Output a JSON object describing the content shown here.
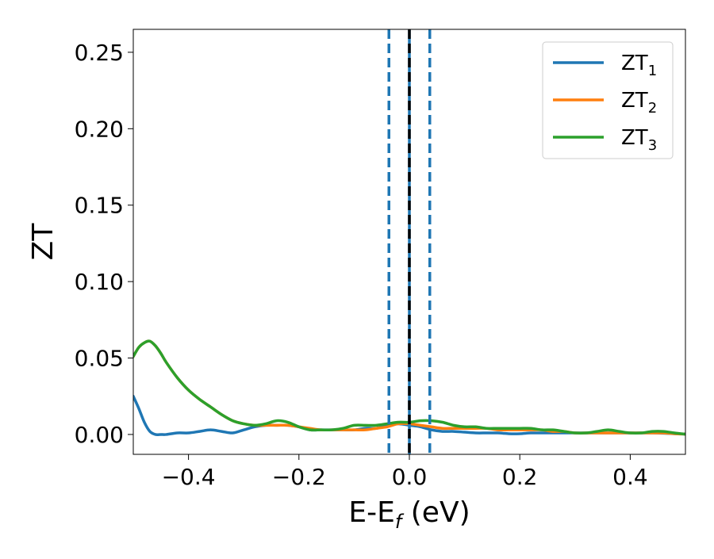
{
  "chart_data": {
    "type": "line",
    "title": "",
    "xlabel": "E-E",
    "xlabel_subscript": "f",
    "xlabel_suffix": " (eV)",
    "ylabel": "ZT",
    "xlim": [
      -0.5,
      0.5
    ],
    "ylim": [
      -0.013,
      0.265
    ],
    "x_ticks": [
      -0.4,
      -0.2,
      0.0,
      0.2,
      0.4
    ],
    "x_tick_labels": [
      "−0.4",
      "−0.2",
      "0.0",
      "0.2",
      "0.4"
    ],
    "y_ticks": [
      0.0,
      0.05,
      0.1,
      0.15,
      0.2,
      0.25
    ],
    "y_tick_labels": [
      "0.00",
      "0.05",
      "0.10",
      "0.15",
      "0.20",
      "0.25"
    ],
    "grid": false,
    "legend_position": "top-right",
    "vertical_lines": [
      {
        "x": -0.037,
        "style": "dashed",
        "color": "#1f77b4"
      },
      {
        "x": 0.0,
        "style": "solid",
        "color": "#1f77b4"
      },
      {
        "x": 0.0,
        "style": "dashed",
        "color": "#000000"
      },
      {
        "x": 0.037,
        "style": "dashed",
        "color": "#1f77b4"
      }
    ],
    "series": [
      {
        "name": "ZT",
        "name_subscript": "1",
        "color": "#1f77b4",
        "x": [
          -0.5,
          -0.49,
          -0.48,
          -0.47,
          -0.46,
          -0.45,
          -0.44,
          -0.42,
          -0.4,
          -0.38,
          -0.36,
          -0.34,
          -0.32,
          -0.3,
          -0.28,
          -0.26,
          -0.24,
          -0.22,
          -0.2,
          -0.18,
          -0.16,
          -0.14,
          -0.12,
          -0.1,
          -0.08,
          -0.06,
          -0.04,
          -0.02,
          0.0,
          0.02,
          0.04,
          0.06,
          0.08,
          0.1,
          0.12,
          0.14,
          0.16,
          0.18,
          0.2,
          0.22,
          0.24,
          0.26,
          0.28,
          0.3,
          0.32,
          0.34,
          0.36,
          0.38,
          0.4,
          0.42,
          0.44,
          0.46,
          0.48,
          0.5
        ],
        "values": [
          0.025,
          0.017,
          0.008,
          0.002,
          0.0,
          0.0,
          0.0,
          0.001,
          0.001,
          0.002,
          0.003,
          0.002,
          0.001,
          0.003,
          0.005,
          0.006,
          0.006,
          0.006,
          0.005,
          0.003,
          0.003,
          0.003,
          0.003,
          0.003,
          0.004,
          0.004,
          0.006,
          0.007,
          0.006,
          0.005,
          0.003,
          0.002,
          0.002,
          0.0015,
          0.001,
          0.001,
          0.001,
          0.0005,
          0.0005,
          0.001,
          0.001,
          0.001,
          0.001,
          0.001,
          0.001,
          0.001,
          0.001,
          0.001,
          0.001,
          0.001,
          0.001,
          0.0008,
          0.0005,
          0.0002
        ]
      },
      {
        "name": "ZT",
        "name_subscript": "2",
        "color": "#ff7f0e",
        "x": [
          -0.5,
          -0.49,
          -0.48,
          -0.47,
          -0.46,
          -0.45,
          -0.44,
          -0.42,
          -0.4,
          -0.38,
          -0.36,
          -0.34,
          -0.32,
          -0.3,
          -0.28,
          -0.26,
          -0.24,
          -0.22,
          -0.2,
          -0.18,
          -0.16,
          -0.14,
          -0.12,
          -0.1,
          -0.08,
          -0.06,
          -0.04,
          -0.02,
          0.0,
          0.02,
          0.04,
          0.06,
          0.08,
          0.1,
          0.12,
          0.14,
          0.16,
          0.18,
          0.2,
          0.22,
          0.24,
          0.26,
          0.28,
          0.3,
          0.32,
          0.34,
          0.36,
          0.38,
          0.4,
          0.42,
          0.44,
          0.46,
          0.48,
          0.5
        ],
        "values": [
          0.051,
          0.057,
          0.06,
          0.061,
          0.058,
          0.053,
          0.047,
          0.037,
          0.029,
          0.023,
          0.018,
          0.013,
          0.009,
          0.007,
          0.006,
          0.006,
          0.006,
          0.006,
          0.005,
          0.004,
          0.003,
          0.003,
          0.003,
          0.003,
          0.003,
          0.004,
          0.005,
          0.007,
          0.007,
          0.006,
          0.005,
          0.004,
          0.004,
          0.004,
          0.004,
          0.004,
          0.003,
          0.003,
          0.003,
          0.003,
          0.003,
          0.002,
          0.002,
          0.001,
          0.001,
          0.001,
          0.001,
          0.001,
          0.001,
          0.001,
          0.001,
          0.001,
          0.0005,
          0.0002
        ]
      },
      {
        "name": "ZT",
        "name_subscript": "3",
        "color": "#2ca02c",
        "x": [
          -0.5,
          -0.49,
          -0.48,
          -0.47,
          -0.46,
          -0.45,
          -0.44,
          -0.42,
          -0.4,
          -0.38,
          -0.36,
          -0.34,
          -0.32,
          -0.3,
          -0.28,
          -0.26,
          -0.24,
          -0.22,
          -0.2,
          -0.18,
          -0.16,
          -0.14,
          -0.12,
          -0.1,
          -0.08,
          -0.06,
          -0.04,
          -0.02,
          0.0,
          0.02,
          0.04,
          0.06,
          0.08,
          0.1,
          0.12,
          0.14,
          0.16,
          0.18,
          0.2,
          0.22,
          0.24,
          0.26,
          0.28,
          0.3,
          0.32,
          0.34,
          0.36,
          0.38,
          0.4,
          0.42,
          0.44,
          0.46,
          0.48,
          0.5
        ],
        "values": [
          0.051,
          0.057,
          0.06,
          0.061,
          0.058,
          0.053,
          0.047,
          0.037,
          0.029,
          0.023,
          0.018,
          0.013,
          0.009,
          0.007,
          0.006,
          0.007,
          0.009,
          0.008,
          0.005,
          0.003,
          0.003,
          0.003,
          0.004,
          0.006,
          0.006,
          0.006,
          0.007,
          0.008,
          0.008,
          0.009,
          0.009,
          0.008,
          0.006,
          0.005,
          0.005,
          0.004,
          0.004,
          0.004,
          0.004,
          0.004,
          0.003,
          0.003,
          0.002,
          0.001,
          0.001,
          0.002,
          0.003,
          0.002,
          0.001,
          0.001,
          0.002,
          0.002,
          0.001,
          0.0002
        ]
      }
    ]
  }
}
